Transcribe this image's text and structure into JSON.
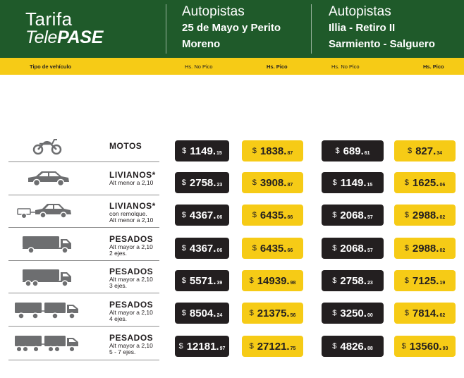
{
  "header": {
    "brand_line1": "Tarifa",
    "brand_line2a": "Tele",
    "brand_line2b": "PASE",
    "route1": {
      "title": "Autopistas",
      "name1": "25 de Mayo y Perito",
      "name2": "Moreno"
    },
    "route2": {
      "title": "Autopistas",
      "name1": "Illia - Retiro II",
      "name2": "Sarmiento - Salguero"
    }
  },
  "subheader": {
    "vehicle_type": "Tipo de vehículo",
    "r1_offpeak": "Hs. No Pico",
    "r1_peak": "Hs. Pico",
    "r2_offpeak": "Hs. No Pico",
    "r2_peak": "Hs. Pico"
  },
  "colors": {
    "header_green": "#1f5a2a",
    "accent_yellow": "#f6cb16",
    "dark": "#231f20"
  },
  "rows": [
    {
      "name": "MOTOS",
      "desc": [],
      "icon": "motorcycle-icon",
      "prices": [
        {
          "cur": "$",
          "int": "1149.",
          "dec": "15"
        },
        {
          "cur": "$",
          "int": "1838.",
          "dec": "87"
        },
        {
          "cur": "$",
          "int": "689.",
          "dec": "61"
        },
        {
          "cur": "$",
          "int": "827.",
          "dec": "34"
        }
      ]
    },
    {
      "name": "LIVIANOS*",
      "desc": [
        "Alt menor a 2,10"
      ],
      "icon": "car-icon",
      "prices": [
        {
          "cur": "$",
          "int": "2758.",
          "dec": "23"
        },
        {
          "cur": "$",
          "int": "3908.",
          "dec": "87"
        },
        {
          "cur": "$",
          "int": "1149.",
          "dec": "15"
        },
        {
          "cur": "$",
          "int": "1625.",
          "dec": "06"
        }
      ]
    },
    {
      "name": "LIVIANOS*",
      "desc": [
        "con remolque.",
        "Alt menor a 2,10"
      ],
      "icon": "car-trailer-icon",
      "prices": [
        {
          "cur": "$",
          "int": "4367.",
          "dec": "06"
        },
        {
          "cur": "$",
          "int": "6435.",
          "dec": "66"
        },
        {
          "cur": "$",
          "int": "2068.",
          "dec": "57"
        },
        {
          "cur": "$",
          "int": "2988.",
          "dec": "02"
        }
      ]
    },
    {
      "name": "PESADOS",
      "desc": [
        "Alt mayor a 2,10",
        "2 ejes."
      ],
      "icon": "truck-2-axles-icon",
      "prices": [
        {
          "cur": "$",
          "int": "4367.",
          "dec": "06"
        },
        {
          "cur": "$",
          "int": "6435.",
          "dec": "66"
        },
        {
          "cur": "$",
          "int": "2068.",
          "dec": "57"
        },
        {
          "cur": "$",
          "int": "2988.",
          "dec": "02"
        }
      ]
    },
    {
      "name": "PESADOS",
      "desc": [
        "Alt mayor a 2,10",
        "3 ejes."
      ],
      "icon": "truck-3-axles-icon",
      "prices": [
        {
          "cur": "$",
          "int": "5571.",
          "dec": "39"
        },
        {
          "cur": "$",
          "int": "14939.",
          "dec": "98"
        },
        {
          "cur": "$",
          "int": "2758.",
          "dec": "23"
        },
        {
          "cur": "$",
          "int": "7125.",
          "dec": "19"
        }
      ]
    },
    {
      "name": "PESADOS",
      "desc": [
        "Alt mayor a 2,10",
        "4 ejes."
      ],
      "icon": "truck-4-axles-icon",
      "prices": [
        {
          "cur": "$",
          "int": "8504.",
          "dec": "24"
        },
        {
          "cur": "$",
          "int": "21375.",
          "dec": "56"
        },
        {
          "cur": "$",
          "int": "3250.",
          "dec": "00"
        },
        {
          "cur": "$",
          "int": "7814.",
          "dec": "62"
        }
      ]
    },
    {
      "name": "PESADOS",
      "desc": [
        "Alt mayor a 2,10",
        "5 - 7 ejes."
      ],
      "icon": "truck-5-7-axles-icon",
      "prices": [
        {
          "cur": "$",
          "int": "12181.",
          "dec": "97"
        },
        {
          "cur": "$",
          "int": "27121.",
          "dec": "75"
        },
        {
          "cur": "$",
          "int": "4826.",
          "dec": "88"
        },
        {
          "cur": "$",
          "int": "13560.",
          "dec": "93"
        }
      ]
    }
  ]
}
